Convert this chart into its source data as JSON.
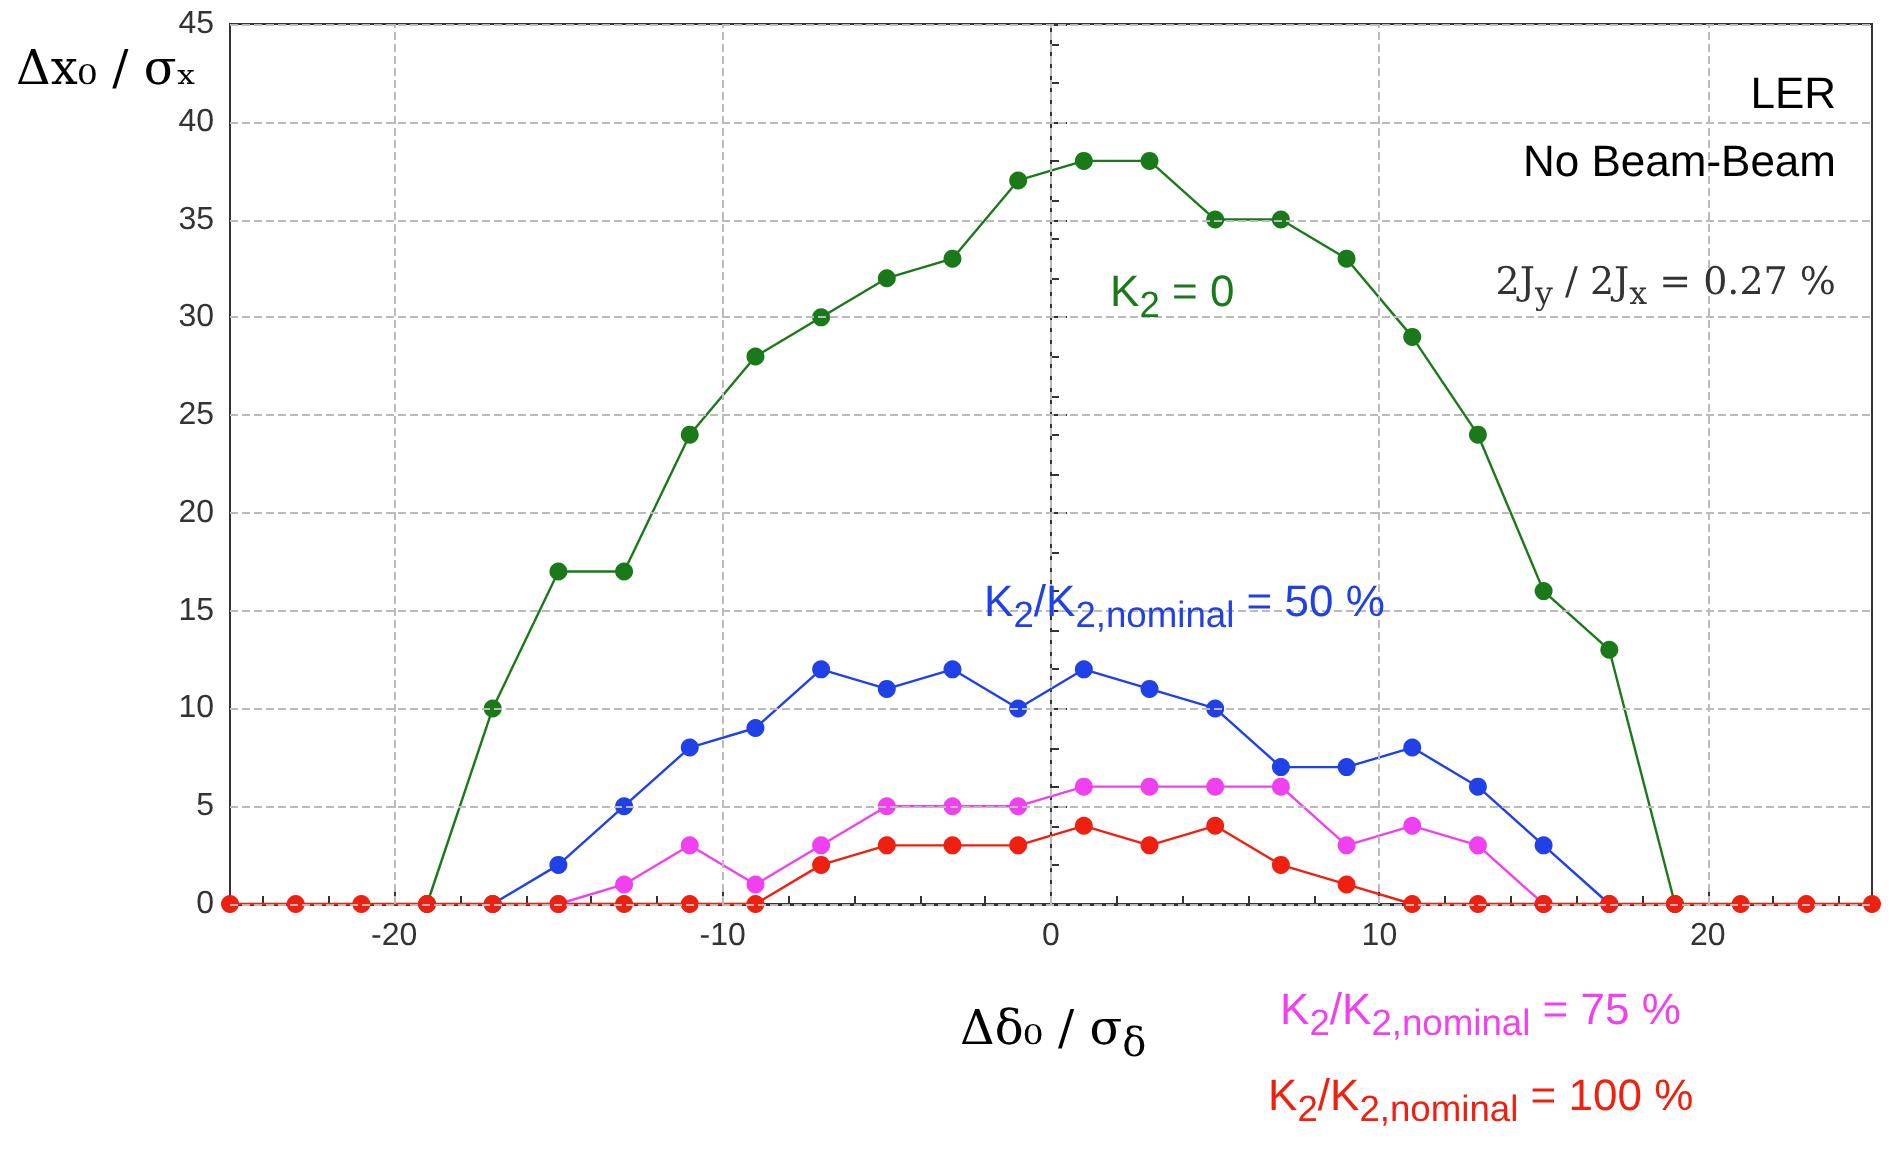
{
  "chart_data": {
    "type": "line",
    "xlabel": "Δδ₀ / σ$_{δ}$",
    "ylabel": "Δx₀ / σₓ",
    "annotations": [
      "LER",
      "No Beam-Beam",
      "2J$_{y}$ / 2J$_{x}$ = 0.27 %"
    ],
    "xlim": [
      -25,
      25
    ],
    "xticks": [
      -20,
      -10,
      0,
      10,
      20
    ],
    "ylim": [
      0,
      45
    ],
    "yticks": [
      0,
      5,
      10,
      15,
      20,
      25,
      30,
      35,
      40,
      45
    ],
    "grid": true,
    "marker": "circle",
    "line_style": "solid",
    "series": [
      {
        "name": "K$_{2}$ = 0",
        "color": "#1a7a1a",
        "x": [
          -19,
          -17,
          -15,
          -13,
          -11,
          -9,
          -7,
          -5,
          -3,
          -1,
          1,
          3,
          5,
          7,
          9,
          11,
          13,
          15,
          17,
          19
        ],
        "values": [
          0,
          10,
          17,
          17,
          24,
          28,
          30,
          32,
          33,
          37,
          38,
          38,
          35,
          35,
          33,
          29,
          24,
          16,
          13,
          0
        ]
      },
      {
        "name": "K$_{2}$/K$_{2,nominal}$ = 50 %",
        "color": "#2040e8",
        "x": [
          -17,
          -15,
          -13,
          -11,
          -9,
          -7,
          -5,
          -3,
          -1,
          1,
          3,
          5,
          7,
          9,
          11,
          13,
          15,
          17
        ],
        "values": [
          0,
          2,
          5,
          8,
          9,
          12,
          11,
          12,
          10,
          12,
          11,
          10,
          7,
          7,
          8,
          6,
          3,
          0
        ]
      },
      {
        "name": "K$_{2}$/K$_{2,nominal}$ = 75 %",
        "color": "#f040f0",
        "x": [
          -15,
          -13,
          -11,
          -9,
          -7,
          -5,
          -3,
          -1,
          1,
          3,
          5,
          7,
          9,
          11,
          13,
          15
        ],
        "values": [
          0,
          1,
          3,
          1,
          3,
          5,
          5,
          5,
          6,
          6,
          6,
          6,
          3,
          4,
          3,
          0
        ]
      },
      {
        "name": "K$_{2}$/K$_{2,nominal}$ = 100 %",
        "color": "#f02010",
        "x": [
          -25,
          -23,
          -21,
          -19,
          -17,
          -15,
          -13,
          -11,
          -9,
          -7,
          -5,
          -3,
          -1,
          1,
          3,
          5,
          7,
          9,
          11,
          13,
          15,
          17,
          19,
          21,
          23,
          25
        ],
        "values": [
          0,
          0,
          0,
          0,
          0,
          0,
          0,
          0,
          0,
          2,
          3,
          3,
          3,
          4,
          3,
          4,
          2,
          1,
          0,
          0,
          0,
          0,
          0,
          0,
          0,
          0
        ]
      }
    ]
  }
}
